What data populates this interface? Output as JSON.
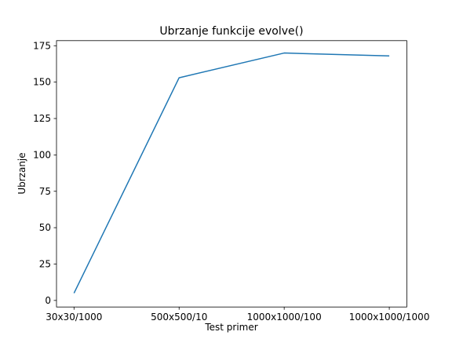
{
  "chart_data": {
    "type": "line",
    "title": "Ubrzanje funkcije evolve()",
    "xlabel": "Test primer",
    "ylabel": "Ubrzanje",
    "categories": [
      "30x30/1000",
      "500x500/10",
      "1000x1000/100",
      "1000x1000/1000"
    ],
    "series": [
      {
        "values": [
          5,
          153,
          170,
          168
        ],
        "color": "#1f77b4"
      }
    ],
    "ylim": [
      -4.5,
      178.5
    ],
    "yticks": [
      0,
      25,
      50,
      75,
      100,
      125,
      150,
      175
    ],
    "grid": false,
    "legend": "none"
  }
}
